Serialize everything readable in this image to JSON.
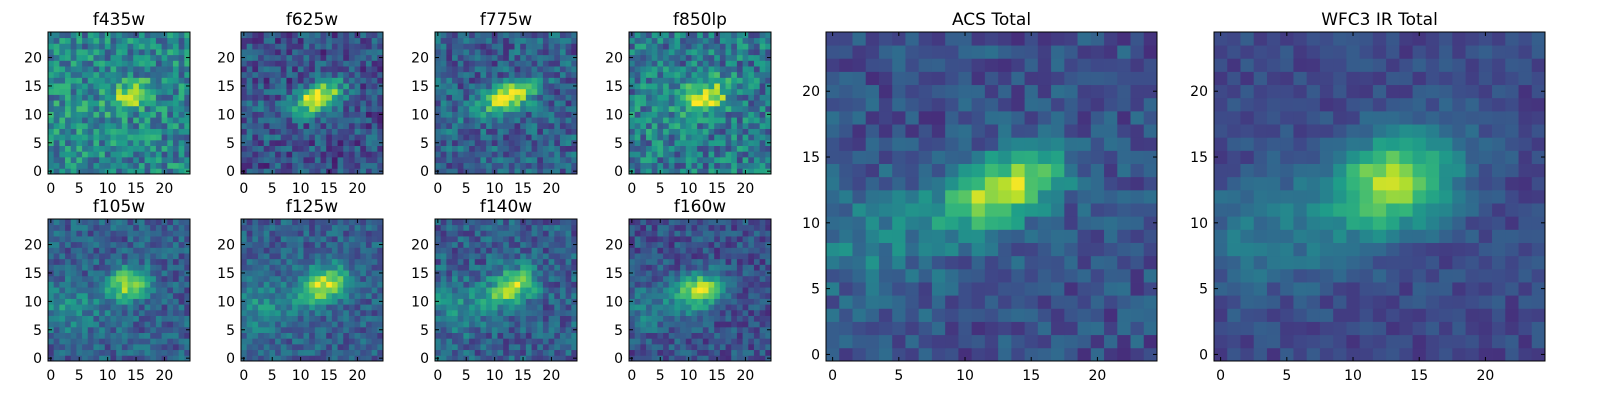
{
  "chart_data": [
    {
      "type": "heatmap",
      "title": "f435w",
      "xticks": [
        0,
        5,
        10,
        15,
        20
      ],
      "yticks": [
        0,
        5,
        10,
        15,
        20
      ],
      "xlim": [
        0,
        24
      ],
      "ylim": [
        0,
        24
      ],
      "colormap": "viridis",
      "source": {
        "x": 14,
        "y": 13,
        "sx": 2.5,
        "sy": 1.5,
        "tilt": 0.3,
        "amp": 0.55
      },
      "background": {
        "level": 0.45,
        "noise": 0.22
      }
    },
    {
      "type": "heatmap",
      "title": "f625w",
      "xticks": [
        0,
        5,
        10,
        15,
        20
      ],
      "yticks": [
        0,
        5,
        10,
        15,
        20
      ],
      "xlim": [
        0,
        24
      ],
      "ylim": [
        0,
        24
      ],
      "colormap": "viridis",
      "source": {
        "x": 13,
        "y": 13,
        "sx": 3.2,
        "sy": 1.6,
        "tilt": 0.4,
        "amp": 0.75
      },
      "background": {
        "level": 0.25,
        "noise": 0.18
      }
    },
    {
      "type": "heatmap",
      "title": "f775w",
      "xticks": [
        0,
        5,
        10,
        15,
        20
      ],
      "yticks": [
        0,
        5,
        10,
        15,
        20
      ],
      "xlim": [
        0,
        24
      ],
      "ylim": [
        0,
        24
      ],
      "colormap": "viridis",
      "source": {
        "x": 12.5,
        "y": 13,
        "sx": 3.2,
        "sy": 1.6,
        "tilt": 0.4,
        "amp": 0.7
      },
      "background": {
        "level": 0.3,
        "noise": 0.18
      }
    },
    {
      "type": "heatmap",
      "title": "f850lp",
      "xticks": [
        0,
        5,
        10,
        15,
        20
      ],
      "yticks": [
        0,
        5,
        10,
        15,
        20
      ],
      "xlim": [
        0,
        24
      ],
      "ylim": [
        0,
        24
      ],
      "colormap": "viridis",
      "source": {
        "x": 13,
        "y": 13,
        "sx": 3,
        "sy": 2,
        "tilt": 0.4,
        "amp": 0.55
      },
      "background": {
        "level": 0.4,
        "noise": 0.22
      }
    },
    {
      "type": "heatmap",
      "title": "f105w",
      "xticks": [
        0,
        5,
        10,
        15,
        20
      ],
      "yticks": [
        0,
        5,
        10,
        15,
        20
      ],
      "xlim": [
        0,
        24
      ],
      "ylim": [
        0,
        24
      ],
      "colormap": "viridis",
      "source": {
        "x": 13.5,
        "y": 13,
        "sx": 2.5,
        "sy": 2,
        "tilt": 0.3,
        "amp": 0.6
      },
      "background": {
        "level": 0.3,
        "noise": 0.15
      }
    },
    {
      "type": "heatmap",
      "title": "f125w",
      "xticks": [
        0,
        5,
        10,
        15,
        20
      ],
      "yticks": [
        0,
        5,
        10,
        15,
        20
      ],
      "xlim": [
        0,
        24
      ],
      "ylim": [
        0,
        24
      ],
      "colormap": "viridis",
      "source": {
        "x": 14,
        "y": 13,
        "sx": 3,
        "sy": 2,
        "tilt": 0.4,
        "amp": 0.65
      },
      "background": {
        "level": 0.3,
        "noise": 0.14
      }
    },
    {
      "type": "heatmap",
      "title": "f140w",
      "xticks": [
        0,
        5,
        10,
        15,
        20
      ],
      "yticks": [
        0,
        5,
        10,
        15,
        20
      ],
      "xlim": [
        0,
        24
      ],
      "ylim": [
        0,
        24
      ],
      "colormap": "viridis",
      "source": {
        "x": 13,
        "y": 12.5,
        "sx": 3,
        "sy": 2,
        "tilt": 0.4,
        "amp": 0.6
      },
      "background": {
        "level": 0.3,
        "noise": 0.16
      }
    },
    {
      "type": "heatmap",
      "title": "f160w",
      "xticks": [
        0,
        5,
        10,
        15,
        20
      ],
      "yticks": [
        0,
        5,
        10,
        15,
        20
      ],
      "xlim": [
        0,
        24
      ],
      "ylim": [
        0,
        24
      ],
      "colormap": "viridis",
      "source": {
        "x": 12,
        "y": 12,
        "sx": 3,
        "sy": 2,
        "tilt": 0.3,
        "amp": 0.65
      },
      "background": {
        "level": 0.25,
        "noise": 0.14
      }
    },
    {
      "type": "heatmap",
      "title": "ACS Total",
      "xticks": [
        0,
        5,
        10,
        15,
        20
      ],
      "yticks": [
        0,
        5,
        10,
        15,
        20
      ],
      "xlim": [
        0,
        24
      ],
      "ylim": [
        0,
        24
      ],
      "colormap": "viridis",
      "source": {
        "x": 13,
        "y": 12.5,
        "sx": 3.3,
        "sy": 1.7,
        "tilt": 0.4,
        "amp": 0.7
      },
      "background": {
        "level": 0.25,
        "noise": 0.12
      }
    },
    {
      "type": "heatmap",
      "title": "WFC3 IR Total",
      "xticks": [
        0,
        5,
        10,
        15,
        20
      ],
      "yticks": [
        0,
        5,
        10,
        15,
        20
      ],
      "xlim": [
        0,
        24
      ],
      "ylim": [
        0,
        24
      ],
      "colormap": "viridis",
      "source": {
        "x": 13,
        "y": 13,
        "sx": 3.5,
        "sy": 2.5,
        "tilt": 0.3,
        "amp": 0.65
      },
      "background": {
        "level": 0.22,
        "noise": 0.08
      }
    }
  ]
}
